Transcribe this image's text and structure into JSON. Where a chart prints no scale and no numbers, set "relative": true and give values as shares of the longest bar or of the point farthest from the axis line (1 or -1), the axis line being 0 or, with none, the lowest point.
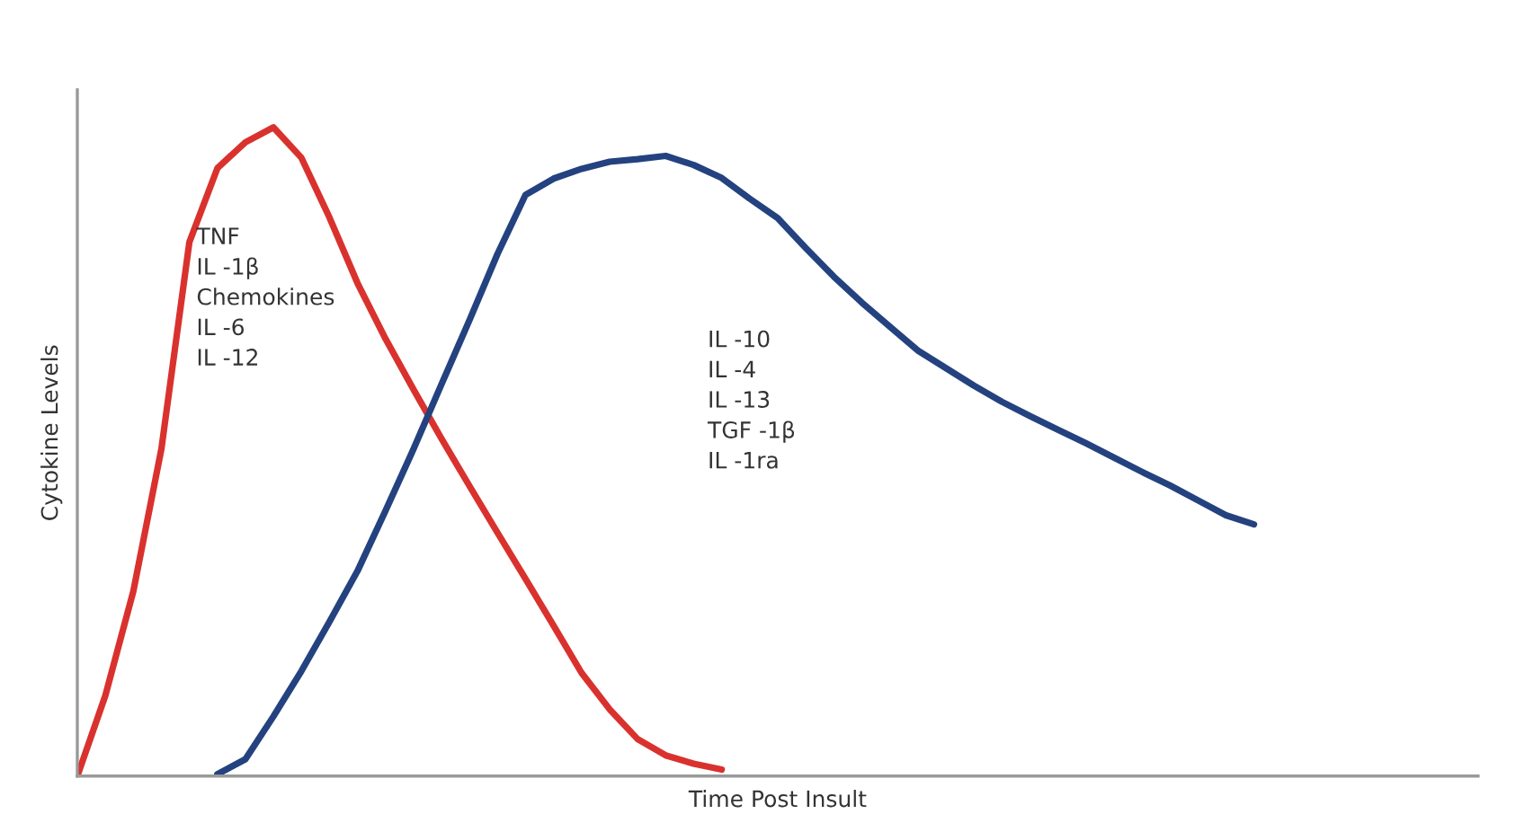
{
  "chart_data": {
    "type": "line",
    "relative": true,
    "xlabel": "Time Post Insult",
    "ylabel": "Cytokine Levels",
    "legend": false,
    "marker": "none",
    "line_style": "solid",
    "categories": [
      null,
      null,
      null,
      null,
      null,
      null,
      null,
      null,
      null,
      null,
      null,
      null,
      null,
      null,
      null,
      null,
      null,
      null,
      null,
      null,
      null,
      null,
      null,
      null,
      null,
      null,
      null,
      null,
      null,
      null,
      null,
      null,
      null,
      null,
      null,
      null,
      null,
      null,
      null,
      null,
      null,
      null,
      null,
      null,
      null,
      null,
      null,
      null,
      null,
      null,
      null
    ],
    "series": [
      {
        "color": "#d9322e",
        "values": [
          0,
          0.124,
          0.285,
          0.504,
          0.823,
          0.937,
          0.977,
          1,
          0.953,
          0.861,
          0.76,
          0.674,
          0.596,
          0.52,
          0.447,
          0.375,
          0.304,
          0.232,
          0.159,
          0.103,
          0.057,
          0.032,
          0.019,
          0.01,
          null,
          null,
          null,
          null,
          null,
          null,
          null,
          null,
          null,
          null,
          null,
          null,
          null,
          null,
          null,
          null,
          null,
          null,
          null,
          null,
          null,
          null,
          null,
          null,
          null,
          null,
          null
        ]
      },
      {
        "color": "#24427f",
        "values": [
          null,
          null,
          null,
          null,
          null,
          0.003,
          0.026,
          0.092,
          0.162,
          0.238,
          0.316,
          0.409,
          0.504,
          0.604,
          0.703,
          0.805,
          0.896,
          0.921,
          0.936,
          0.947,
          0.951,
          0.956,
          0.942,
          0.922,
          0.89,
          0.86,
          0.814,
          0.77,
          0.73,
          0.693,
          0.656,
          0.629,
          0.602,
          0.577,
          0.555,
          0.534,
          0.513,
          0.491,
          0.469,
          0.448,
          0.425,
          0.402,
          0.388,
          null,
          null,
          null,
          null,
          null,
          null,
          null,
          null
        ]
      }
    ],
    "annotations": [
      "TNF\nIL -1β\nChemokines\nIL -6\nIL -12",
      "IL -10\nIL -4\nIL -13\nTGF -1β\nIL -1ra"
    ]
  }
}
